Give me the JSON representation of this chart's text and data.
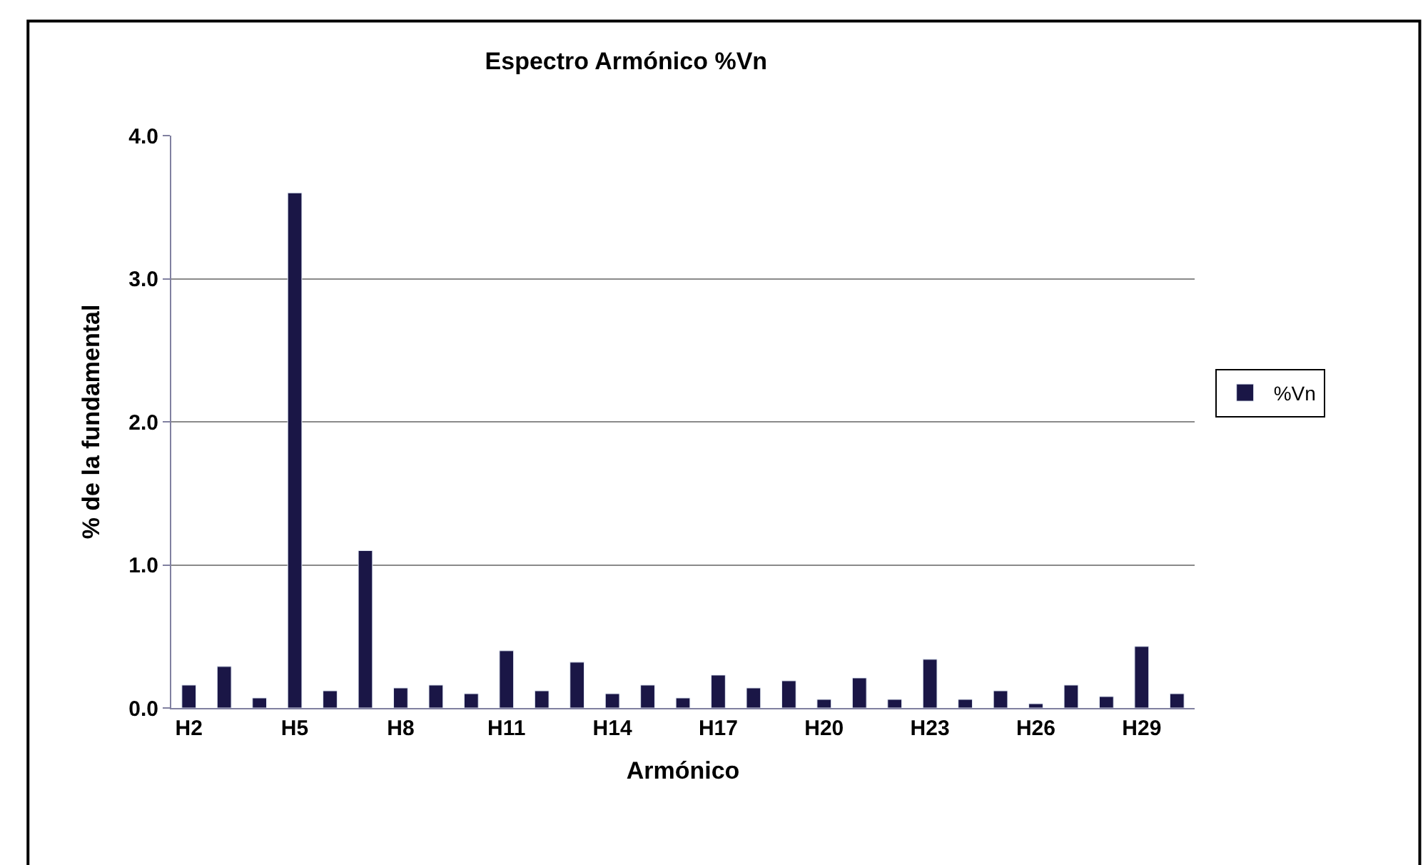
{
  "chart_data": {
    "type": "bar",
    "title": "Espectro Armónico %Vn",
    "xlabel": "Armónico",
    "ylabel": "% de la fundamental",
    "categories": [
      "H2",
      null,
      null,
      "H5",
      null,
      null,
      "H8",
      null,
      null,
      "H11",
      null,
      null,
      "H14",
      null,
      null,
      "H17",
      null,
      null,
      "H20",
      null,
      null,
      "H23",
      null,
      null,
      "H26",
      null,
      null,
      "H29",
      null
    ],
    "series": [
      {
        "name": "%Vn",
        "color": "#1a1646",
        "values": [
          0.16,
          0.29,
          0.07,
          3.6,
          0.12,
          1.1,
          0.14,
          0.16,
          0.1,
          0.4,
          0.12,
          0.32,
          0.1,
          0.16,
          0.07,
          0.23,
          0.14,
          0.19,
          0.06,
          0.21,
          0.06,
          0.34,
          0.06,
          0.12,
          0.03,
          0.16,
          0.08,
          0.43,
          0.1
        ]
      }
    ],
    "ylim": [
      0,
      4
    ],
    "yticks": [
      {
        "value": 0,
        "label": "0.0"
      },
      {
        "value": 1,
        "label": "1.0"
      },
      {
        "value": 2,
        "label": "2.0"
      },
      {
        "value": 3,
        "label": "3.0"
      },
      {
        "value": 4,
        "label": "4.0"
      }
    ],
    "grid": "y",
    "legend": "right"
  }
}
